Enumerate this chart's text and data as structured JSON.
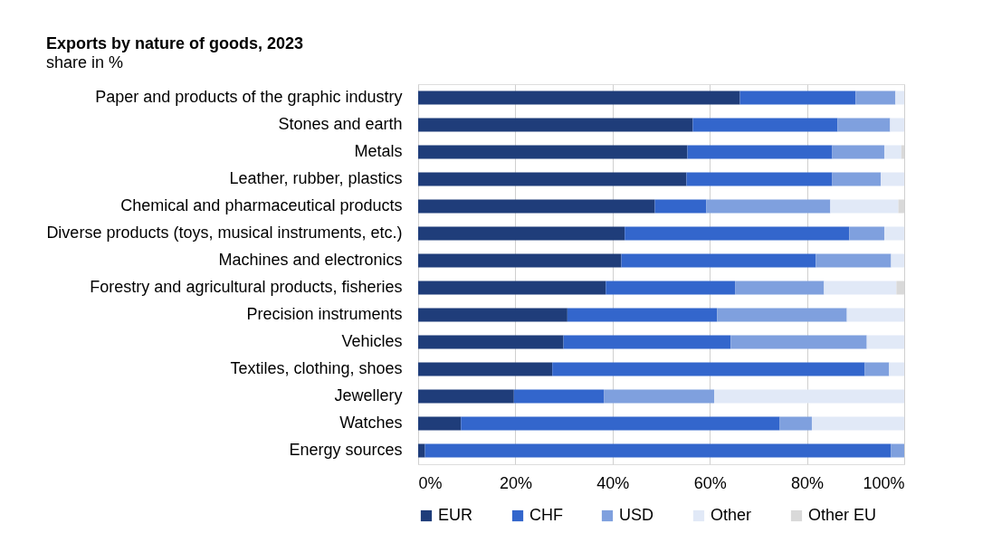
{
  "chart_data": {
    "type": "bar",
    "orientation": "horizontal",
    "stacked": true,
    "title": "Exports by nature of goods, 2023",
    "subtitle": "share in %",
    "categories": [
      "Paper and products of the graphic industry",
      "Stones and earth",
      "Metals",
      "Leather, rubber, plastics",
      "Chemical and pharmaceutical products",
      "Diverse products (toys, musical instruments, etc.)",
      "Machines and electronics",
      "Forestry and agricultural products, fisheries",
      "Precision instruments",
      "Vehicles",
      "Textiles, clothing, shoes",
      "Jewellery",
      "Watches",
      "Energy sources"
    ],
    "series": [
      {
        "name": "EUR",
        "color": "#1f3d7a",
        "values": [
          66.2,
          56.5,
          55.4,
          55.2,
          48.7,
          42.5,
          41.8,
          38.6,
          30.7,
          29.9,
          27.6,
          19.7,
          8.8,
          1.4
        ]
      },
      {
        "name": "CHF",
        "color": "#3366cc",
        "values": [
          23.8,
          29.8,
          29.8,
          30.0,
          10.6,
          46.2,
          40.0,
          26.6,
          30.8,
          34.4,
          64.3,
          18.5,
          65.6,
          95.9
        ]
      },
      {
        "name": "USD",
        "color": "#7fa0de",
        "values": [
          8.2,
          10.8,
          10.7,
          10.0,
          25.5,
          7.2,
          15.5,
          18.3,
          26.7,
          28.0,
          5.0,
          22.7,
          6.6,
          2.7
        ]
      },
      {
        "name": "Other",
        "color": "#e1e9f7",
        "values": [
          1.8,
          2.9,
          3.5,
          4.8,
          14.0,
          4.1,
          2.7,
          14.9,
          11.8,
          7.7,
          3.1,
          39.1,
          19.0,
          0
        ]
      },
      {
        "name": "Other EU",
        "color": "#d9d9d9",
        "values": [
          0,
          0,
          0.6,
          0,
          1.2,
          0,
          0,
          1.6,
          0,
          0,
          0,
          0,
          0,
          0
        ]
      }
    ],
    "xlim": [
      0,
      100
    ],
    "xticks": [
      {
        "value": 0,
        "label": "0%"
      },
      {
        "value": 20,
        "label": "20%"
      },
      {
        "value": 40,
        "label": "40%"
      },
      {
        "value": 60,
        "label": "60%"
      },
      {
        "value": 80,
        "label": "80%"
      },
      {
        "value": 100,
        "label": "100%"
      }
    ],
    "grid": "x",
    "legend": "bottom"
  }
}
